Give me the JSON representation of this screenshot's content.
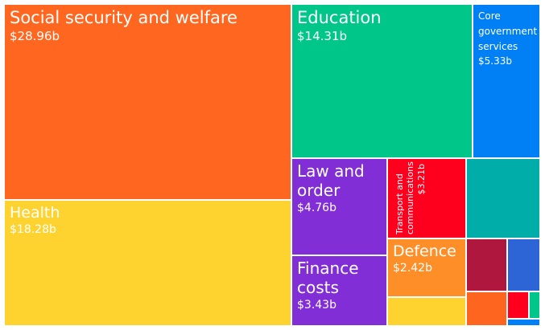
{
  "chart_data": {
    "type": "treemap",
    "items": [
      {
        "name": "Social security and welfare",
        "label": "$28.96b",
        "value": 28.96,
        "color": "#ff661f"
      },
      {
        "name": "Health",
        "label": "$18.28b",
        "value": 18.28,
        "color": "#fed330"
      },
      {
        "name": "Education",
        "label": "$14.31b",
        "value": 14.31,
        "color": "#00c68a"
      },
      {
        "name": "Core government services",
        "label": "$5.33b",
        "value": 5.33,
        "color": "#0080f4"
      },
      {
        "name": "Law and order",
        "label": "$4.76b",
        "value": 4.76,
        "color": "#822ed6"
      },
      {
        "name": "Finance costs",
        "label": "$3.43b",
        "value": 3.43,
        "color": "#822ed6"
      },
      {
        "name": "Transport and communications",
        "label": "$3.21b",
        "value": 3.21,
        "color": "#fe001d"
      },
      {
        "name": "Defence",
        "label": "$2.42b",
        "value": 2.42,
        "color": "#fe8f28"
      },
      {
        "name": "",
        "label": "",
        "value": null,
        "color": "#00ada8"
      },
      {
        "name": "",
        "label": "",
        "value": null,
        "color": "#fed330"
      },
      {
        "name": "",
        "label": "",
        "value": null,
        "color": "#b0173f"
      },
      {
        "name": "",
        "label": "",
        "value": null,
        "color": "#2d65d6"
      },
      {
        "name": "",
        "label": "",
        "value": null,
        "color": "#fe661f"
      },
      {
        "name": "",
        "label": "",
        "value": null,
        "color": "#fe001d"
      },
      {
        "name": "",
        "label": "",
        "value": null,
        "color": "#00c68a"
      },
      {
        "name": "",
        "label": "",
        "value": null,
        "color": "#0080f4"
      }
    ]
  }
}
